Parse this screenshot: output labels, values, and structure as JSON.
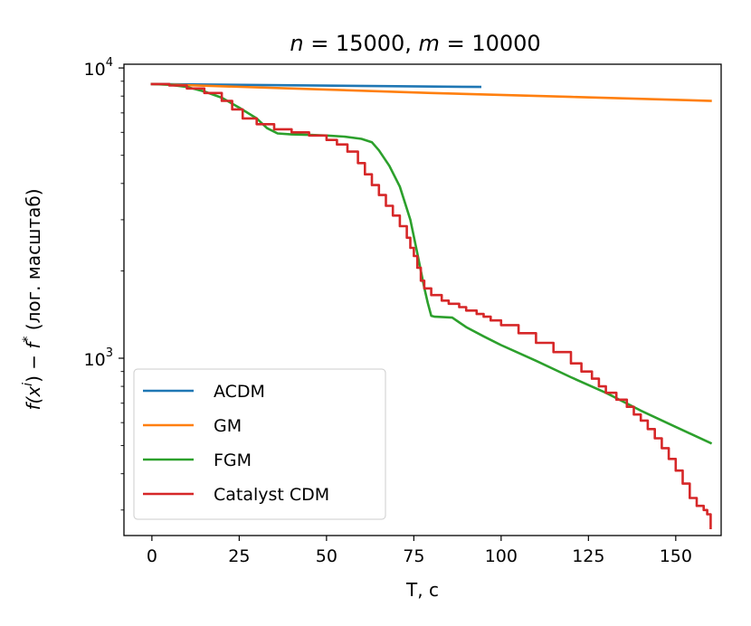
{
  "chart_data": {
    "type": "line",
    "title": "n = 15000, m = 10000",
    "title_parts": {
      "n_var": "n",
      "n_val": "= 15000,",
      "m_var": "m",
      "m_val": "= 10000"
    },
    "xlabel": "T, с",
    "ylabel": "f(xⁱ) − f* (лог. масштаб)",
    "ylabel_parts": {
      "f_x": "f(x",
      "sup_i": "i",
      "close_minus": ") −",
      "f": "f",
      "star": "*",
      "suffix": "(лог. масштаб)"
    },
    "xlim": [
      -8,
      163
    ],
    "ylim": [
      245,
      10300
    ],
    "yscale": "log",
    "x_ticks": [
      0,
      25,
      50,
      75,
      100,
      125,
      150
    ],
    "x_tick_labels": [
      "0",
      "25",
      "50",
      "75",
      "100",
      "125",
      "150"
    ],
    "y_ticks": [
      1000,
      10000
    ],
    "y_tick_labels": [
      {
        "base": "10",
        "exp": "3"
      },
      {
        "base": "10",
        "exp": "4"
      }
    ],
    "legend_position": "lower-left",
    "series": [
      {
        "name": "ACDM",
        "color": "#1f77b4",
        "step": false,
        "points": [
          [
            0,
            8800
          ],
          [
            94,
            8600
          ]
        ]
      },
      {
        "name": "GM",
        "color": "#ff7f0e",
        "step": false,
        "points": [
          [
            0,
            8800
          ],
          [
            40,
            8500
          ],
          [
            80,
            8200
          ],
          [
            120,
            7950
          ],
          [
            160,
            7700
          ]
        ]
      },
      {
        "name": "FGM",
        "color": "#2ca02c",
        "step": false,
        "points": [
          [
            0,
            8800
          ],
          [
            5,
            8750
          ],
          [
            10,
            8600
          ],
          [
            15,
            8300
          ],
          [
            20,
            7900
          ],
          [
            25,
            7300
          ],
          [
            30,
            6700
          ],
          [
            33,
            6200
          ],
          [
            36,
            5950
          ],
          [
            40,
            5900
          ],
          [
            45,
            5880
          ],
          [
            50,
            5850
          ],
          [
            55,
            5800
          ],
          [
            60,
            5700
          ],
          [
            63,
            5550
          ],
          [
            65,
            5200
          ],
          [
            68,
            4600
          ],
          [
            71,
            3900
          ],
          [
            74,
            3000
          ],
          [
            76,
            2300
          ],
          [
            78,
            1750
          ],
          [
            79,
            1550
          ],
          [
            80,
            1400
          ],
          [
            81,
            1390
          ],
          [
            86,
            1380
          ],
          [
            90,
            1280
          ],
          [
            95,
            1190
          ],
          [
            100,
            1110
          ],
          [
            110,
            980
          ],
          [
            120,
            860
          ],
          [
            130,
            760
          ],
          [
            140,
            660
          ],
          [
            150,
            580
          ],
          [
            160,
            510
          ]
        ]
      },
      {
        "name": "Catalyst CDM",
        "color": "#d62728",
        "step": true,
        "points": [
          [
            0,
            8800
          ],
          [
            5,
            8700
          ],
          [
            10,
            8500
          ],
          [
            15,
            8200
          ],
          [
            20,
            7700
          ],
          [
            23,
            7200
          ],
          [
            26,
            6700
          ],
          [
            30,
            6400
          ],
          [
            35,
            6150
          ],
          [
            40,
            6000
          ],
          [
            45,
            5850
          ],
          [
            50,
            5650
          ],
          [
            53,
            5450
          ],
          [
            56,
            5150
          ],
          [
            59,
            4700
          ],
          [
            61,
            4300
          ],
          [
            63,
            3950
          ],
          [
            65,
            3650
          ],
          [
            67,
            3350
          ],
          [
            69,
            3100
          ],
          [
            71,
            2850
          ],
          [
            73,
            2600
          ],
          [
            74,
            2400
          ],
          [
            75,
            2250
          ],
          [
            76,
            2050
          ],
          [
            77,
            1850
          ],
          [
            78,
            1740
          ],
          [
            80,
            1650
          ],
          [
            83,
            1580
          ],
          [
            85,
            1540
          ],
          [
            88,
            1500
          ],
          [
            90,
            1460
          ],
          [
            93,
            1420
          ],
          [
            95,
            1390
          ],
          [
            97,
            1350
          ],
          [
            100,
            1300
          ],
          [
            105,
            1220
          ],
          [
            110,
            1130
          ],
          [
            115,
            1050
          ],
          [
            120,
            960
          ],
          [
            123,
            900
          ],
          [
            126,
            850
          ],
          [
            128,
            800
          ],
          [
            130,
            760
          ],
          [
            133,
            720
          ],
          [
            136,
            680
          ],
          [
            138,
            640
          ],
          [
            140,
            610
          ],
          [
            142,
            570
          ],
          [
            144,
            530
          ],
          [
            146,
            490
          ],
          [
            148,
            450
          ],
          [
            150,
            410
          ],
          [
            152,
            370
          ],
          [
            154,
            330
          ],
          [
            156,
            310
          ],
          [
            158,
            300
          ],
          [
            159,
            290
          ],
          [
            160,
            260
          ]
        ]
      }
    ]
  }
}
